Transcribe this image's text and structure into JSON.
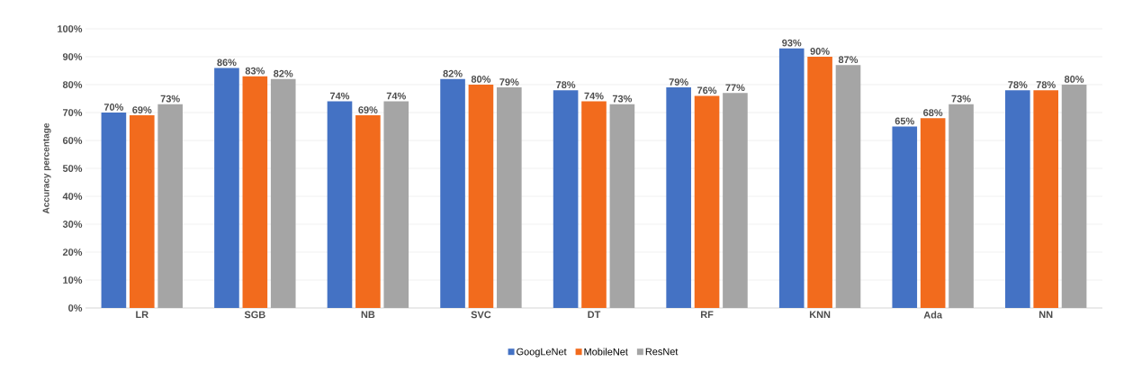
{
  "chart_data": {
    "type": "bar",
    "ylabel": "Accuracy percentage",
    "categories": [
      "LR",
      "SGB",
      "NB",
      "SVC",
      "DT",
      "RF",
      "KNN",
      "Ada",
      "NN"
    ],
    "series": [
      {
        "name": "GoogLeNet",
        "color": "#4472c4",
        "values": [
          70,
          86,
          74,
          82,
          78,
          79,
          93,
          65,
          78
        ],
        "value_labels": [
          "70%",
          "86%",
          "74%",
          "82%",
          "78%",
          "79%",
          "93%",
          "65%",
          "78%"
        ]
      },
      {
        "name": "MobileNet",
        "color": "#f26b1d",
        "values": [
          69,
          83,
          69,
          80,
          74,
          76,
          90,
          68,
          78
        ],
        "value_labels": [
          "69%",
          "83%",
          "69%",
          "80%",
          "74%",
          "76%",
          "90%",
          "68%",
          "78%"
        ]
      },
      {
        "name": "ResNet",
        "color": "#a5a5a5",
        "values": [
          73,
          82,
          74,
          79,
          73,
          77,
          87,
          73,
          80
        ],
        "value_labels": [
          "73%",
          "82%",
          "74%",
          "79%",
          "73%",
          "77%",
          "87%",
          "73%",
          "80%"
        ]
      }
    ],
    "ylim": [
      0,
      100
    ],
    "yticks": [
      {
        "value": 0,
        "label": "0%"
      },
      {
        "value": 10,
        "label": "10%"
      },
      {
        "value": 20,
        "label": "20%"
      },
      {
        "value": 30,
        "label": "30%"
      },
      {
        "value": 40,
        "label": "40%"
      },
      {
        "value": 50,
        "label": "50%"
      },
      {
        "value": 60,
        "label": "60%"
      },
      {
        "value": 70,
        "label": "70%"
      },
      {
        "value": 80,
        "label": "80%"
      },
      {
        "value": 90,
        "label": "90%"
      },
      {
        "value": 100,
        "label": "100%"
      }
    ],
    "grid": "y",
    "legend": "bottom"
  }
}
